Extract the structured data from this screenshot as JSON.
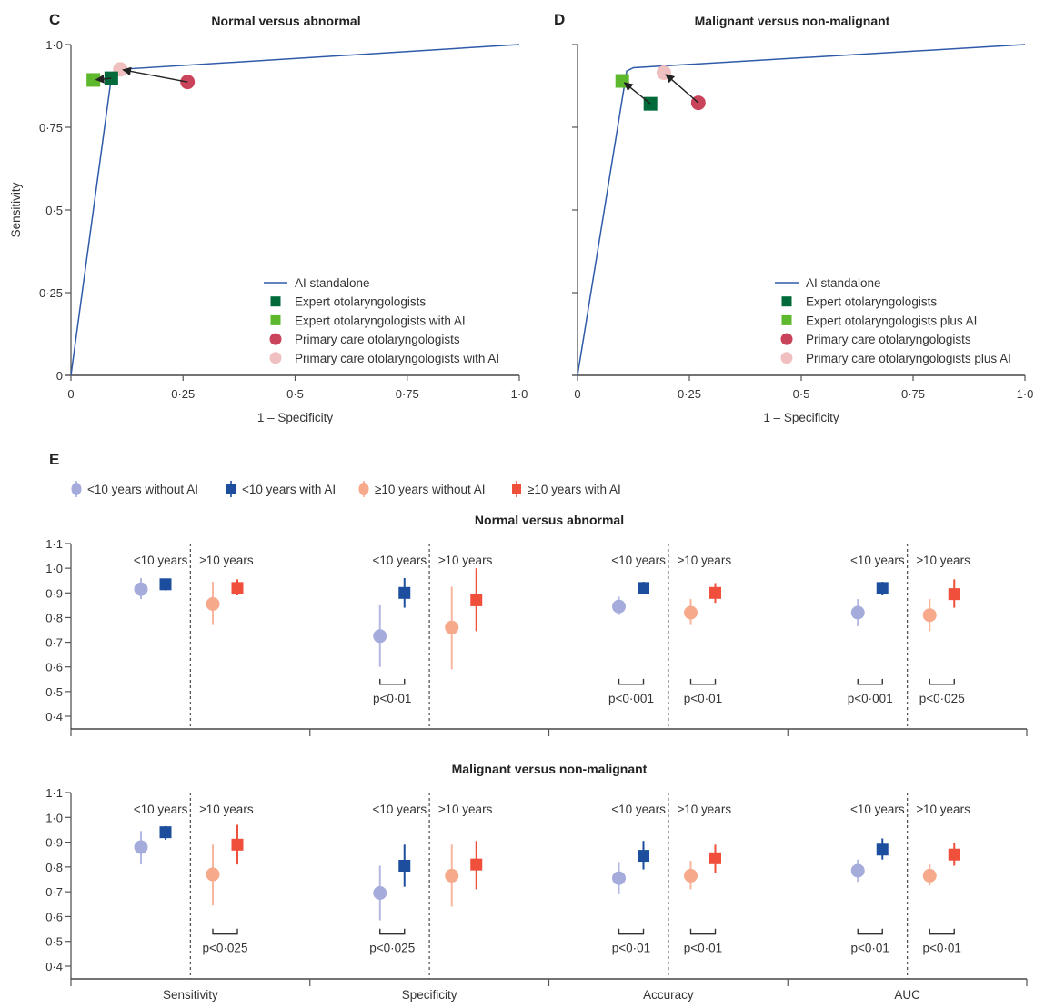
{
  "chart_data": [
    {
      "id": "C",
      "type": "scatter",
      "panel_letter": "C",
      "title": "Normal versus abnormal",
      "xlabel": "1 – Specificity",
      "ylabel": "Sensitivity",
      "xlim": [
        0,
        1.0
      ],
      "ylim": [
        0,
        1.0
      ],
      "x_ticks": [
        0,
        0.25,
        0.5,
        0.75,
        1.0
      ],
      "x_tick_labels": [
        "0",
        "0·25",
        "0·5",
        "0·75",
        "1·0"
      ],
      "y_ticks": [
        0,
        0.25,
        0.5,
        0.75,
        1.0
      ],
      "y_tick_labels": [
        "0",
        "0·25",
        "0·5",
        "0·75",
        "1·0"
      ],
      "show_y_tick_labels": true,
      "legend_position": "bottom-right",
      "curve": {
        "name": "AI standalone",
        "color": "#2f5aa8",
        "points": [
          [
            0,
            0
          ],
          [
            0.09,
            0.9
          ],
          [
            0.11,
            0.925
          ],
          [
            1.0,
            1.0
          ]
        ]
      },
      "points": [
        {
          "name": "Expert otolaryngologists",
          "shape": "square",
          "color": "#006a3a",
          "x": 0.09,
          "y": 0.898
        },
        {
          "name": "Expert otolaryngologists with AI",
          "shape": "square",
          "color": "#5db82e",
          "x": 0.05,
          "y": 0.893
        },
        {
          "name": "Primary care otolaryngologists",
          "shape": "circle",
          "color": "#c9435a",
          "x": 0.26,
          "y": 0.887
        },
        {
          "name": "Primary care otolaryngologists with AI",
          "shape": "circle",
          "color": "#f0c0c0",
          "x": 0.11,
          "y": 0.925
        }
      ],
      "arrows": [
        {
          "from": "Expert otolaryngologists",
          "to": "Expert otolaryngologists with AI"
        },
        {
          "from": "Primary care otolaryngologists",
          "to": "Primary care otolaryngologists with AI"
        }
      ]
    },
    {
      "id": "D",
      "type": "scatter",
      "panel_letter": "D",
      "title": "Malignant versus non-malignant",
      "xlabel": "1 – Specificity",
      "ylabel": "",
      "xlim": [
        0,
        1.0
      ],
      "ylim": [
        0,
        1.0
      ],
      "x_ticks": [
        0,
        0.25,
        0.5,
        0.75,
        1.0
      ],
      "x_tick_labels": [
        "0",
        "0·25",
        "0·5",
        "0·75",
        "1·0"
      ],
      "y_ticks": [
        0,
        0.25,
        0.5,
        0.75,
        1.0
      ],
      "y_tick_labels": [],
      "show_y_tick_labels": false,
      "legend_position": "bottom-right",
      "curve": {
        "name": "AI standalone",
        "color": "#2f5aa8",
        "points": [
          [
            0,
            0
          ],
          [
            0.11,
            0.92
          ],
          [
            0.125,
            0.93
          ],
          [
            1.0,
            1.0
          ]
        ]
      },
      "points": [
        {
          "name": "Expert otolaryngologists",
          "shape": "square",
          "color": "#006a3a",
          "x": 0.163,
          "y": 0.821
        },
        {
          "name": "Expert otolaryngologists plus AI",
          "shape": "square",
          "color": "#5db82e",
          "x": 0.1,
          "y": 0.89
        },
        {
          "name": "Primary care otolaryngologists",
          "shape": "circle",
          "color": "#c9435a",
          "x": 0.27,
          "y": 0.824
        },
        {
          "name": "Primary care otolaryngologists plus AI",
          "shape": "circle",
          "color": "#f0c0c0",
          "x": 0.193,
          "y": 0.915
        }
      ],
      "arrows": [
        {
          "from": "Expert otolaryngologists",
          "to": "Expert otolaryngologists plus AI"
        },
        {
          "from": "Primary care otolaryngologists",
          "to": "Primary care otolaryngologists plus AI"
        }
      ]
    },
    {
      "id": "E",
      "type": "scatter",
      "subtype": "forest",
      "panel_letter": "E",
      "legend": [
        {
          "name": "<10 years without AI",
          "shape": "circle",
          "color": "#a5acdc"
        },
        {
          "name": "<10 years with AI",
          "shape": "square",
          "color": "#1d4e9e"
        },
        {
          "name": "≥10 years without AI",
          "shape": "circle",
          "color": "#f7a98c"
        },
        {
          "name": "≥10 years with AI",
          "shape": "square",
          "color": "#ef4f3b"
        }
      ],
      "legend_position": "top-left",
      "categories": [
        "Sensitivity",
        "Specificity",
        "Accuracy",
        "AUC"
      ],
      "group_labels": [
        "<10 years",
        "≥10 years"
      ],
      "ylim": [
        0.4,
        1.1
      ],
      "y_ticks": [
        0.4,
        0.5,
        0.6,
        0.7,
        0.8,
        0.9,
        1.0,
        1.1
      ],
      "y_tick_labels": [
        "0·4",
        "0·5",
        "0·6",
        "0·7",
        "0·8",
        "0·9",
        "1·0",
        "1·1"
      ],
      "subplots": [
        {
          "title": "Normal versus abnormal",
          "metrics": [
            {
              "category": "Sensitivity",
              "values": [
                {
                  "est": 0.915,
                  "lo": 0.875,
                  "hi": 0.96
                },
                {
                  "est": 0.935,
                  "lo": 0.91,
                  "hi": 0.955
                },
                {
                  "est": 0.855,
                  "lo": 0.77,
                  "hi": 0.945
                },
                {
                  "est": 0.92,
                  "lo": 0.89,
                  "hi": 0.955
                }
              ],
              "p_lt10": "",
              "p_ge10": ""
            },
            {
              "category": "Specificity",
              "values": [
                {
                  "est": 0.725,
                  "lo": 0.6,
                  "hi": 0.85
                },
                {
                  "est": 0.9,
                  "lo": 0.84,
                  "hi": 0.96
                },
                {
                  "est": 0.76,
                  "lo": 0.59,
                  "hi": 0.925
                },
                {
                  "est": 0.87,
                  "lo": 0.745,
                  "hi": 1.0
                }
              ],
              "p_lt10": "p<0·01",
              "p_ge10": ""
            },
            {
              "category": "Accuracy",
              "values": [
                {
                  "est": 0.845,
                  "lo": 0.81,
                  "hi": 0.885
                },
                {
                  "est": 0.92,
                  "lo": 0.9,
                  "hi": 0.945
                },
                {
                  "est": 0.82,
                  "lo": 0.77,
                  "hi": 0.875
                },
                {
                  "est": 0.9,
                  "lo": 0.86,
                  "hi": 0.94
                }
              ],
              "p_lt10": "p<0·001",
              "p_ge10": "p<0·01"
            },
            {
              "category": "AUC",
              "values": [
                {
                  "est": 0.82,
                  "lo": 0.765,
                  "hi": 0.875
                },
                {
                  "est": 0.92,
                  "lo": 0.89,
                  "hi": 0.945
                },
                {
                  "est": 0.81,
                  "lo": 0.745,
                  "hi": 0.875
                },
                {
                  "est": 0.895,
                  "lo": 0.84,
                  "hi": 0.955
                }
              ],
              "p_lt10": "p<0·001",
              "p_ge10": "p<0·025"
            }
          ]
        },
        {
          "title": "Malignant versus non-malignant",
          "metrics": [
            {
              "category": "Sensitivity",
              "values": [
                {
                  "est": 0.88,
                  "lo": 0.81,
                  "hi": 0.945
                },
                {
                  "est": 0.94,
                  "lo": 0.91,
                  "hi": 0.965
                },
                {
                  "est": 0.77,
                  "lo": 0.645,
                  "hi": 0.89
                },
                {
                  "est": 0.89,
                  "lo": 0.81,
                  "hi": 0.97
                }
              ],
              "p_lt10": "",
              "p_ge10": "p<0·025"
            },
            {
              "category": "Specificity",
              "values": [
                {
                  "est": 0.695,
                  "lo": 0.585,
                  "hi": 0.805
                },
                {
                  "est": 0.805,
                  "lo": 0.72,
                  "hi": 0.89
                },
                {
                  "est": 0.765,
                  "lo": 0.64,
                  "hi": 0.89
                },
                {
                  "est": 0.81,
                  "lo": 0.71,
                  "hi": 0.905
                }
              ],
              "p_lt10": "p<0·025",
              "p_ge10": ""
            },
            {
              "category": "Accuracy",
              "values": [
                {
                  "est": 0.755,
                  "lo": 0.69,
                  "hi": 0.82
                },
                {
                  "est": 0.845,
                  "lo": 0.79,
                  "hi": 0.905
                },
                {
                  "est": 0.765,
                  "lo": 0.71,
                  "hi": 0.825
                },
                {
                  "est": 0.835,
                  "lo": 0.775,
                  "hi": 0.89
                }
              ],
              "p_lt10": "p<0·01",
              "p_ge10": "p<0·01"
            },
            {
              "category": "AUC",
              "values": [
                {
                  "est": 0.785,
                  "lo": 0.74,
                  "hi": 0.83
                },
                {
                  "est": 0.87,
                  "lo": 0.83,
                  "hi": 0.915
                },
                {
                  "est": 0.765,
                  "lo": 0.725,
                  "hi": 0.81
                },
                {
                  "est": 0.85,
                  "lo": 0.805,
                  "hi": 0.895
                }
              ],
              "p_lt10": "p<0·01",
              "p_ge10": "p<0·01"
            }
          ]
        }
      ]
    }
  ]
}
